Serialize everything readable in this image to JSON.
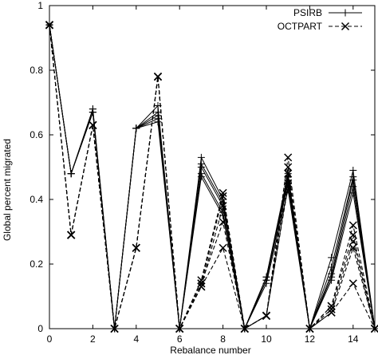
{
  "chart_data": {
    "type": "line",
    "title": "",
    "xlabel": "Rebalance number",
    "ylabel": "Global percent migrated",
    "xlim": [
      0,
      15
    ],
    "ylim": [
      0,
      1
    ],
    "xticks": [
      0,
      2,
      4,
      6,
      8,
      10,
      12,
      14
    ],
    "yticks": [
      0,
      0.2,
      0.4,
      0.6,
      0.8,
      1
    ],
    "grid": false,
    "legend_position": "top-right",
    "x": [
      0,
      1,
      2,
      3,
      4,
      5,
      6,
      7,
      8,
      9,
      10,
      11,
      12,
      13,
      14,
      15
    ],
    "series": [
      {
        "name": "PSIRB",
        "style": "solid",
        "marker": "+",
        "color": "#000000",
        "values": [
          0.94,
          0.48,
          0.68,
          0.0,
          0.62,
          0.69,
          0.0,
          0.53,
          0.4,
          0.0,
          0.16,
          0.48,
          0.0,
          0.22,
          0.49,
          0.0
        ]
      },
      {
        "name": "",
        "style": "solid",
        "marker": "+",
        "color": "#000000",
        "values": [
          0.94,
          0.48,
          0.68,
          0.0,
          0.62,
          0.67,
          0.0,
          0.51,
          0.39,
          0.0,
          0.16,
          0.47,
          0.0,
          0.19,
          0.47,
          0.0
        ]
      },
      {
        "name": "",
        "style": "solid",
        "marker": "+",
        "color": "#000000",
        "values": [
          0.94,
          0.48,
          0.67,
          0.0,
          0.62,
          0.66,
          0.0,
          0.5,
          0.38,
          0.0,
          0.15,
          0.46,
          0.0,
          0.17,
          0.46,
          0.0
        ]
      },
      {
        "name": "",
        "style": "solid",
        "marker": "+",
        "color": "#000000",
        "values": [
          0.94,
          0.48,
          0.67,
          0.0,
          0.62,
          0.65,
          0.0,
          0.48,
          0.36,
          0.0,
          0.15,
          0.45,
          0.0,
          0.16,
          0.44,
          0.0
        ]
      },
      {
        "name": "",
        "style": "solid",
        "marker": "+",
        "color": "#000000",
        "values": [
          0.94,
          0.48,
          0.67,
          0.0,
          0.62,
          0.64,
          0.0,
          0.47,
          0.35,
          0.0,
          0.14,
          0.43,
          0.0,
          0.15,
          0.42,
          0.0
        ]
      },
      {
        "name": "OCTPART",
        "style": "dashed",
        "marker": "x",
        "color": "#000000",
        "values": [
          0.94,
          0.29,
          0.63,
          0.0,
          0.25,
          0.78,
          0.0,
          0.15,
          0.42,
          0.0,
          0.04,
          0.53,
          0.0,
          0.07,
          0.32,
          0.0
        ]
      },
      {
        "name": "",
        "style": "dashed",
        "marker": "x",
        "color": "#000000",
        "values": [
          0.94,
          0.29,
          0.63,
          0.0,
          0.25,
          0.78,
          0.0,
          0.14,
          0.41,
          0.0,
          0.04,
          0.5,
          0.0,
          0.07,
          0.29,
          0.0
        ]
      },
      {
        "name": "",
        "style": "dashed",
        "marker": "x",
        "color": "#000000",
        "values": [
          0.94,
          0.29,
          0.63,
          0.0,
          0.25,
          0.78,
          0.0,
          0.14,
          0.33,
          0.0,
          0.04,
          0.48,
          0.0,
          0.06,
          0.27,
          0.0
        ]
      },
      {
        "name": "",
        "style": "dashed",
        "marker": "x",
        "color": "#000000",
        "values": [
          0.94,
          0.29,
          0.63,
          0.0,
          0.25,
          0.78,
          0.0,
          0.13,
          0.25,
          0.0,
          0.04,
          0.45,
          0.0,
          0.05,
          0.25,
          0.0
        ]
      },
      {
        "name": "",
        "style": "dashed",
        "marker": "x",
        "color": "#000000",
        "values": [
          0.94,
          0.29,
          0.63,
          0.0,
          0.25,
          0.78,
          0.0,
          0.13,
          0.38,
          0.0,
          0.04,
          0.44,
          0.0,
          0.05,
          0.14,
          0.0
        ]
      }
    ]
  }
}
